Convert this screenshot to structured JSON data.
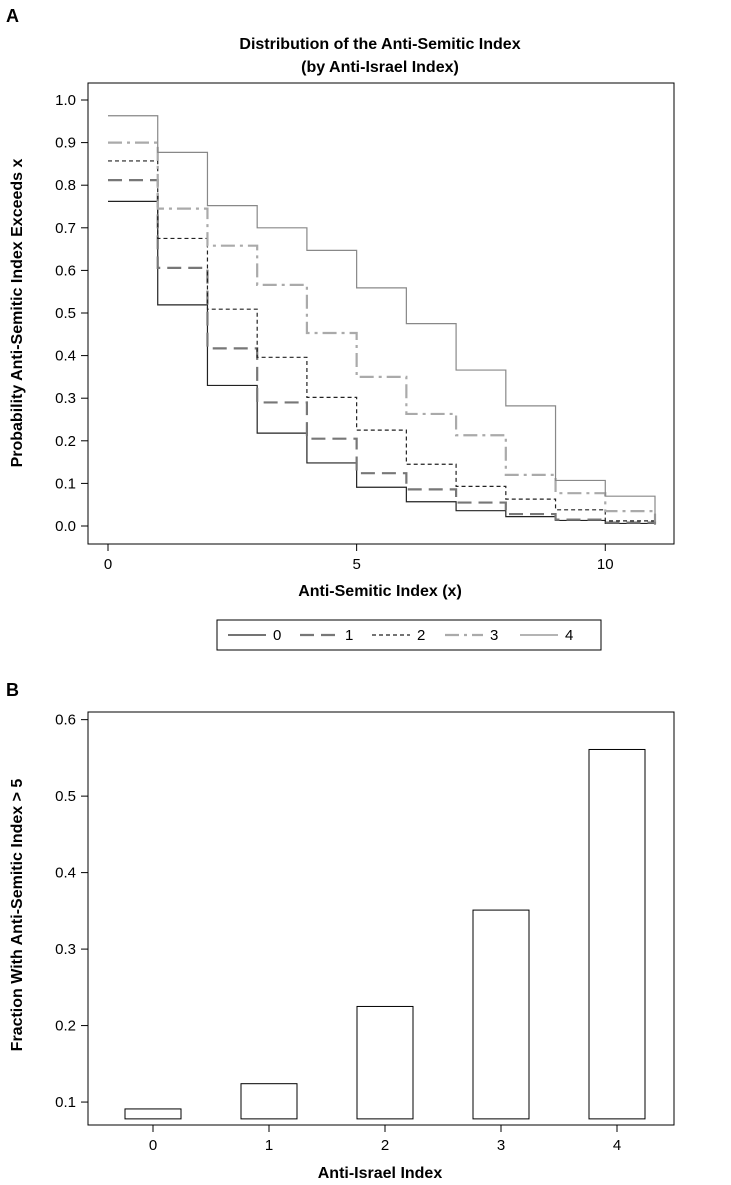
{
  "chart_data": [
    {
      "panel": "A",
      "type": "line",
      "step": true,
      "title": [
        "Distribution of the Anti-Semitic Index",
        "(by Anti-Israel Index)"
      ],
      "xlabel": "Anti-Semitic Index (x)",
      "ylabel": "Probability Anti-Semitic Index Exceeds x",
      "xlim": [
        0,
        11
      ],
      "ylim": [
        0,
        1
      ],
      "xticks": [
        0,
        5,
        10
      ],
      "yticks": [
        "0.0",
        "0.1",
        "0.2",
        "0.3",
        "0.4",
        "0.5",
        "0.6",
        "0.7",
        "0.8",
        "0.9",
        "1.0"
      ],
      "legend_position": "bottom",
      "x": [
        0,
        1,
        2,
        3,
        4,
        5,
        6,
        7,
        8,
        9,
        10,
        11
      ],
      "series": [
        {
          "name": "0",
          "style": "solid",
          "color": "#222222",
          "values": [
            0.762,
            0.519,
            0.33,
            0.218,
            0.148,
            0.091,
            0.057,
            0.036,
            0.022,
            0.013,
            0.006,
            0.003
          ]
        },
        {
          "name": "1",
          "style": "longdash",
          "color": "#777777",
          "values": [
            0.812,
            0.606,
            0.417,
            0.29,
            0.205,
            0.124,
            0.086,
            0.055,
            0.028,
            0.015,
            0.008,
            0.004
          ]
        },
        {
          "name": "2",
          "style": "dotted",
          "color": "#222222",
          "values": [
            0.857,
            0.675,
            0.509,
            0.396,
            0.302,
            0.225,
            0.145,
            0.093,
            0.063,
            0.038,
            0.012,
            0.006
          ]
        },
        {
          "name": "3",
          "style": "dashdot",
          "color": "#aaaaaa",
          "values": [
            0.9,
            0.745,
            0.658,
            0.566,
            0.453,
            0.35,
            0.263,
            0.213,
            0.12,
            0.077,
            0.035,
            0.01
          ]
        },
        {
          "name": "4",
          "style": "solid",
          "color": "#888888",
          "values": [
            0.963,
            0.877,
            0.752,
            0.7,
            0.647,
            0.559,
            0.475,
            0.366,
            0.282,
            0.107,
            0.07,
            0.003
          ]
        }
      ]
    },
    {
      "panel": "B",
      "type": "bar",
      "xlabel": "Anti-Israel Index",
      "ylabel": "Fraction With Anti-Semitic Index > 5",
      "categories": [
        "0",
        "1",
        "2",
        "3",
        "4"
      ],
      "values": [
        0.091,
        0.124,
        0.225,
        0.351,
        0.561
      ],
      "base": 0.078,
      "ylim": [
        0.07,
        0.61
      ],
      "yticks": [
        "0.1",
        "0.2",
        "0.3",
        "0.4",
        "0.5",
        "0.6"
      ]
    }
  ]
}
